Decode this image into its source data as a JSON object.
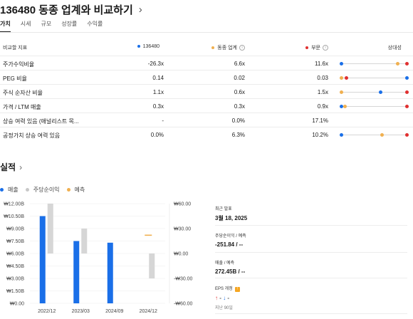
{
  "header": {
    "title": "136480 동종 업계와 비교하기"
  },
  "tabs": [
    {
      "label": "가치"
    },
    {
      "label": "시세"
    },
    {
      "label": "규모"
    },
    {
      "label": "성장률"
    },
    {
      "label": "수익률"
    }
  ],
  "comparison": {
    "headers": {
      "metric": "비교할 지표",
      "company": "136480",
      "peer": "동종 업계",
      "sector": "부문",
      "relative": "상대성"
    },
    "colors": {
      "company": "#1a6fe8",
      "peer": "#f0b050",
      "sector": "#e03030"
    },
    "rows": [
      {
        "metric": "주가수익비율",
        "company": "-26.3x",
        "peer": "6.6x",
        "sector": "11.6x",
        "rel": [
          0.0,
          0.86,
          1.0
        ]
      },
      {
        "metric": "PEG 비율",
        "company": "0.14",
        "peer": "0.02",
        "sector": "0.03",
        "rel": [
          1.0,
          0.0,
          0.08
        ]
      },
      {
        "metric": "주식 순자산 비율",
        "company": "1.1x",
        "peer": "0.6x",
        "sector": "1.5x",
        "rel": [
          0.6,
          0.0,
          1.0
        ]
      },
      {
        "metric": "가격 / LTM 매출",
        "company": "0.3x",
        "peer": "0.3x",
        "sector": "0.9x",
        "rel": [
          0.0,
          0.05,
          1.0
        ]
      },
      {
        "metric": "상승 여력 있음 (애널리스트 목...",
        "company": "-",
        "peer": "0.0%",
        "sector": "17.1%",
        "rel": null
      },
      {
        "metric": "공정가치 상승 여력 있음",
        "company": "0.0%",
        "peer": "6.3%",
        "sector": "10.2%",
        "rel": [
          0.0,
          0.62,
          1.0
        ]
      }
    ]
  },
  "performance": {
    "title": "실적",
    "legend": [
      {
        "label": "매출",
        "color": "#1a6fe8"
      },
      {
        "label": "주당순이익",
        "color": "#c8c8c8"
      },
      {
        "label": "예측",
        "color": "#f0b050"
      }
    ]
  },
  "chart_data": {
    "type": "bar",
    "categories": [
      "2022/12",
      "2023/03",
      "2024/09",
      "2024/12"
    ],
    "series": [
      {
        "name": "매출",
        "axis": "left",
        "values": [
          10.5,
          7.5,
          7.3,
          null
        ]
      },
      {
        "name": "주당순이익",
        "axis": "right",
        "ranges": [
          [
            0,
            60
          ],
          [
            0,
            30
          ],
          null,
          [
            -30,
            0
          ]
        ]
      },
      {
        "name": "예측",
        "axis": "right",
        "values": [
          null,
          null,
          null,
          22
        ]
      }
    ],
    "left_ticks": [
      "₩12.00B",
      "₩10.50B",
      "₩9.00B",
      "₩7.50B",
      "₩6.00B",
      "₩4.50B",
      "₩3.00B",
      "₩1.50B",
      "₩0.00"
    ],
    "right_ticks": [
      "₩60.00",
      "₩30.00",
      "₩0.00",
      "-₩30.00",
      "-₩60.00"
    ],
    "ylim_left": [
      0,
      12
    ],
    "ylim_right": [
      -60,
      60
    ]
  },
  "summary": {
    "latest_label": "최근 발표",
    "latest_value": "3월 18, 2025",
    "eps_label": "주당순이익 / 예측",
    "eps_value": "-251.84 / --",
    "rev_label": "매출 / 예측",
    "rev_value": "272.45B / --",
    "eps_rev_label": "EPS 개정",
    "eps_rev_up": "↑",
    "eps_rev_dash1": "-",
    "eps_rev_down": "↓",
    "eps_rev_dash2": "-",
    "eps_rev_period": "지난 90일"
  }
}
